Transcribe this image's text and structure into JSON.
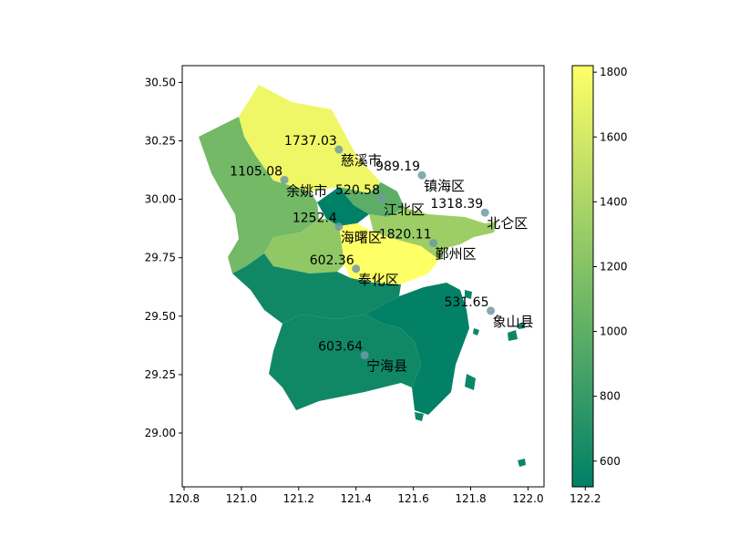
{
  "chart_data": {
    "type": "choropleth",
    "title": "",
    "xlabel": "",
    "ylabel": "",
    "xlim": [
      120.8,
      122.35
    ],
    "ylim": [
      28.83,
      30.57
    ],
    "xticks": [
      120.8,
      121.0,
      121.2,
      121.4,
      121.6,
      121.8,
      122.0,
      122.2
    ],
    "xtick_labels": [
      "120.8",
      "121.0",
      "121.2",
      "121.4",
      "121.6",
      "121.8",
      "122.0",
      "122.2"
    ],
    "yticks": [
      29.0,
      29.25,
      29.5,
      29.75,
      30.0,
      30.25,
      30.5
    ],
    "ytick_labels": [
      "29.00",
      "29.25",
      "29.50",
      "29.75",
      "30.00",
      "30.25",
      "30.50"
    ],
    "colormap": "summer",
    "colorbar": {
      "min": 520.58,
      "max": 1820.11,
      "ticks": [
        600,
        800,
        1000,
        1200,
        1400,
        1600,
        1800
      ],
      "tick_labels": [
        "600",
        "800",
        "1000",
        "1200",
        "1400",
        "1600",
        "1800"
      ]
    },
    "regions": [
      {
        "name": "慈溪市",
        "value": 1737.03,
        "value_label": "1737.03",
        "lon": 121.34,
        "lat": 30.17
      },
      {
        "name": "余姚市",
        "value": 1105.08,
        "value_label": "1105.08",
        "lon": 121.15,
        "lat": 30.04
      },
      {
        "name": "镇海区",
        "value": 989.19,
        "value_label": "989.19",
        "lon": 121.63,
        "lat": 30.06
      },
      {
        "name": "江北区",
        "value": 520.58,
        "value_label": "520.58",
        "lon": 121.49,
        "lat": 29.96
      },
      {
        "name": "北仑区",
        "value": 1318.39,
        "value_label": "1318.39",
        "lon": 121.85,
        "lat": 29.9
      },
      {
        "name": "海曙区",
        "value": 1252.4,
        "value_label": "1252.4",
        "lon": 121.34,
        "lat": 29.84
      },
      {
        "name": "鄞州区",
        "value": 1820.11,
        "value_label": "1820.11",
        "lon": 121.67,
        "lat": 29.77
      },
      {
        "name": "奉化区",
        "value": 602.36,
        "value_label": "602.36",
        "lon": 121.4,
        "lat": 29.66
      },
      {
        "name": "象山县",
        "value": 531.65,
        "value_label": "531.65",
        "lon": 121.87,
        "lat": 29.48
      },
      {
        "name": "宁海县",
        "value": 603.64,
        "value_label": "603.64",
        "lon": 121.43,
        "lat": 29.29
      }
    ]
  }
}
